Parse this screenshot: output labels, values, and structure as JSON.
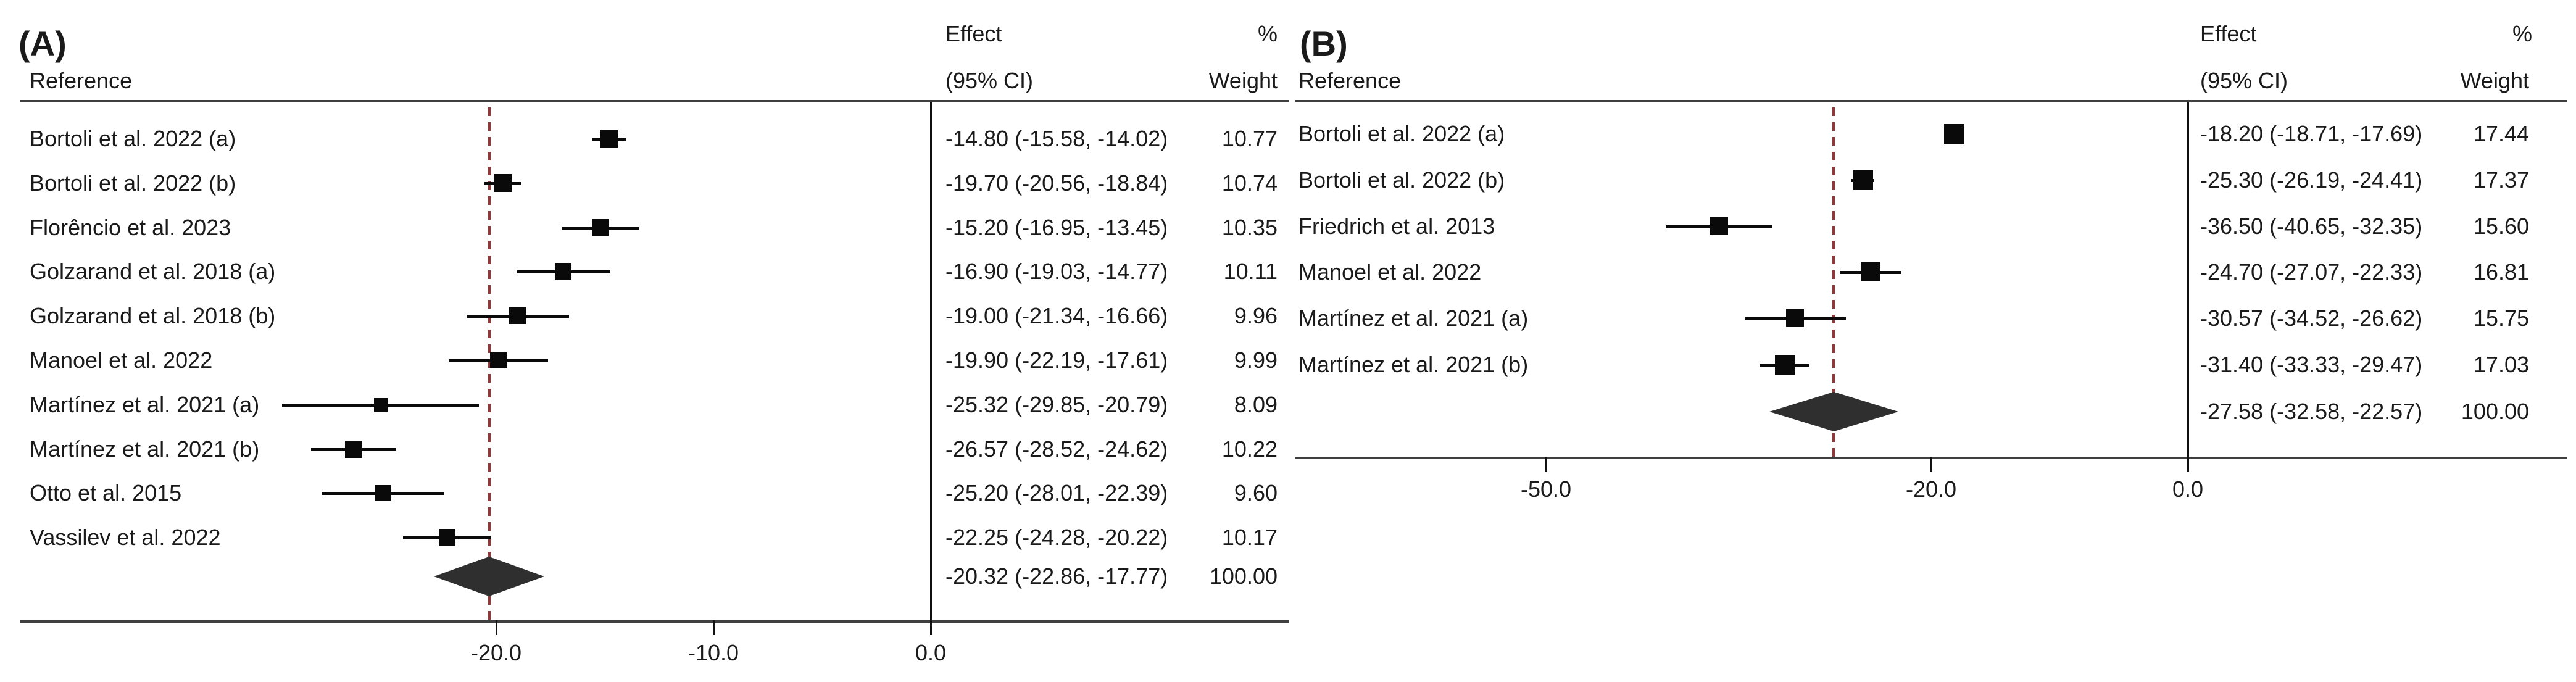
{
  "colors": {
    "background": "#ffffff",
    "text": "#1a1a1a",
    "rule": "#3f3f3f",
    "marker": "#0a0a0a",
    "diamond_fill": "#2f2f2f",
    "pooled_line": "#993536"
  },
  "chart_data": [
    {
      "type": "forest",
      "panel": "A",
      "title": "(A)",
      "legend_position": "none",
      "grid": false,
      "columns": {
        "reference": "Reference",
        "effect_line1": "Effect",
        "effect_line2": "(95% CI)",
        "weight_line1": "%",
        "weight_line2": "Weight"
      },
      "x_axis": {
        "tick_values": [
          -20.0,
          -10.0,
          0.0
        ],
        "tick_labels": [
          "-20.0",
          "-10.0",
          "0.0"
        ],
        "xlim": [
          -42,
          0
        ]
      },
      "pooled_effect": -20.32,
      "studies": [
        {
          "label": "Bortoli et al. 2022 (a)",
          "effect": -14.8,
          "ci_lower": -15.58,
          "ci_upper": -14.02,
          "effect_text": "-14.80 (-15.58, -14.02)",
          "weight": 10.77,
          "weight_text": "10.77"
        },
        {
          "label": "Bortoli et al. 2022 (b)",
          "effect": -19.7,
          "ci_lower": -20.56,
          "ci_upper": -18.84,
          "effect_text": "-19.70 (-20.56, -18.84)",
          "weight": 10.74,
          "weight_text": "10.74"
        },
        {
          "label": "Florêncio et al. 2023",
          "effect": -15.2,
          "ci_lower": -16.95,
          "ci_upper": -13.45,
          "effect_text": "-15.20 (-16.95, -13.45)",
          "weight": 10.35,
          "weight_text": "10.35"
        },
        {
          "label": "Golzarand et al. 2018 (a)",
          "effect": -16.9,
          "ci_lower": -19.03,
          "ci_upper": -14.77,
          "effect_text": "-16.90 (-19.03, -14.77)",
          "weight": 10.11,
          "weight_text": "10.11"
        },
        {
          "label": "Golzarand et al. 2018 (b)",
          "effect": -19.0,
          "ci_lower": -21.34,
          "ci_upper": -16.66,
          "effect_text": "-19.00 (-21.34, -16.66)",
          "weight": 9.96,
          "weight_text": "9.96"
        },
        {
          "label": "Manoel et al. 2022",
          "effect": -19.9,
          "ci_lower": -22.19,
          "ci_upper": -17.61,
          "effect_text": "-19.90 (-22.19, -17.61)",
          "weight": 9.99,
          "weight_text": "9.99"
        },
        {
          "label": "Martínez et al. 2021 (a)",
          "effect": -25.32,
          "ci_lower": -29.85,
          "ci_upper": -20.79,
          "effect_text": "-25.32 (-29.85, -20.79)",
          "weight": 8.09,
          "weight_text": "8.09"
        },
        {
          "label": "Martínez et al. 2021 (b)",
          "effect": -26.57,
          "ci_lower": -28.52,
          "ci_upper": -24.62,
          "effect_text": "-26.57 (-28.52, -24.62)",
          "weight": 10.22,
          "weight_text": "10.22"
        },
        {
          "label": "Otto et al. 2015",
          "effect": -25.2,
          "ci_lower": -28.01,
          "ci_upper": -22.39,
          "effect_text": "-25.20 (-28.01, -22.39)",
          "weight": 9.6,
          "weight_text": "9.60"
        },
        {
          "label": "Vassilev et al. 2022",
          "effect": -22.25,
          "ci_lower": -24.28,
          "ci_upper": -20.22,
          "effect_text": "-22.25 (-24.28, -20.22)",
          "weight": 10.17,
          "weight_text": "10.17"
        }
      ],
      "overall": {
        "effect": -20.32,
        "ci_lower": -22.86,
        "ci_upper": -17.77,
        "effect_text": "-20.32 (-22.86, -17.77)",
        "weight_text": "100.00"
      }
    },
    {
      "type": "forest",
      "panel": "B",
      "title": "(B)",
      "legend_position": "none",
      "grid": false,
      "columns": {
        "reference": "Reference",
        "effect_line1": "Effect",
        "effect_line2": "(95% CI)",
        "weight_line1": "%",
        "weight_line2": "Weight"
      },
      "x_axis": {
        "tick_values": [
          -50.0,
          -20.0,
          0.0
        ],
        "tick_labels": [
          "-50.0",
          "-20.0",
          "0.0"
        ],
        "xlim": [
          -69,
          0
        ]
      },
      "pooled_effect": -27.58,
      "studies": [
        {
          "label": "Bortoli et al. 2022 (a)",
          "effect": -18.2,
          "ci_lower": -18.71,
          "ci_upper": -17.69,
          "effect_text": "-18.20 (-18.71, -17.69)",
          "weight": 17.44,
          "weight_text": "17.44"
        },
        {
          "label": "Bortoli et al. 2022 (b)",
          "effect": -25.3,
          "ci_lower": -26.19,
          "ci_upper": -24.41,
          "effect_text": "-25.30 (-26.19, -24.41)",
          "weight": 17.37,
          "weight_text": "17.37"
        },
        {
          "label": "Friedrich et al. 2013",
          "effect": -36.5,
          "ci_lower": -40.65,
          "ci_upper": -32.35,
          "effect_text": "-36.50 (-40.65, -32.35)",
          "weight": 15.6,
          "weight_text": "15.60"
        },
        {
          "label": "Manoel et al. 2022",
          "effect": -24.7,
          "ci_lower": -27.07,
          "ci_upper": -22.33,
          "effect_text": "-24.70 (-27.07, -22.33)",
          "weight": 16.81,
          "weight_text": "16.81"
        },
        {
          "label": "Martínez et al. 2021 (a)",
          "effect": -30.57,
          "ci_lower": -34.52,
          "ci_upper": -26.62,
          "effect_text": "-30.57 (-34.52, -26.62)",
          "weight": 15.75,
          "weight_text": "15.75"
        },
        {
          "label": "Martínez et al. 2021 (b)",
          "effect": -31.4,
          "ci_lower": -33.33,
          "ci_upper": -29.47,
          "effect_text": "-31.40 (-33.33, -29.47)",
          "weight": 17.03,
          "weight_text": "17.03"
        }
      ],
      "overall": {
        "effect": -27.58,
        "ci_lower": -32.58,
        "ci_upper": -22.57,
        "effect_text": "-27.58 (-32.58, -22.57)",
        "weight_text": "100.00"
      }
    }
  ]
}
